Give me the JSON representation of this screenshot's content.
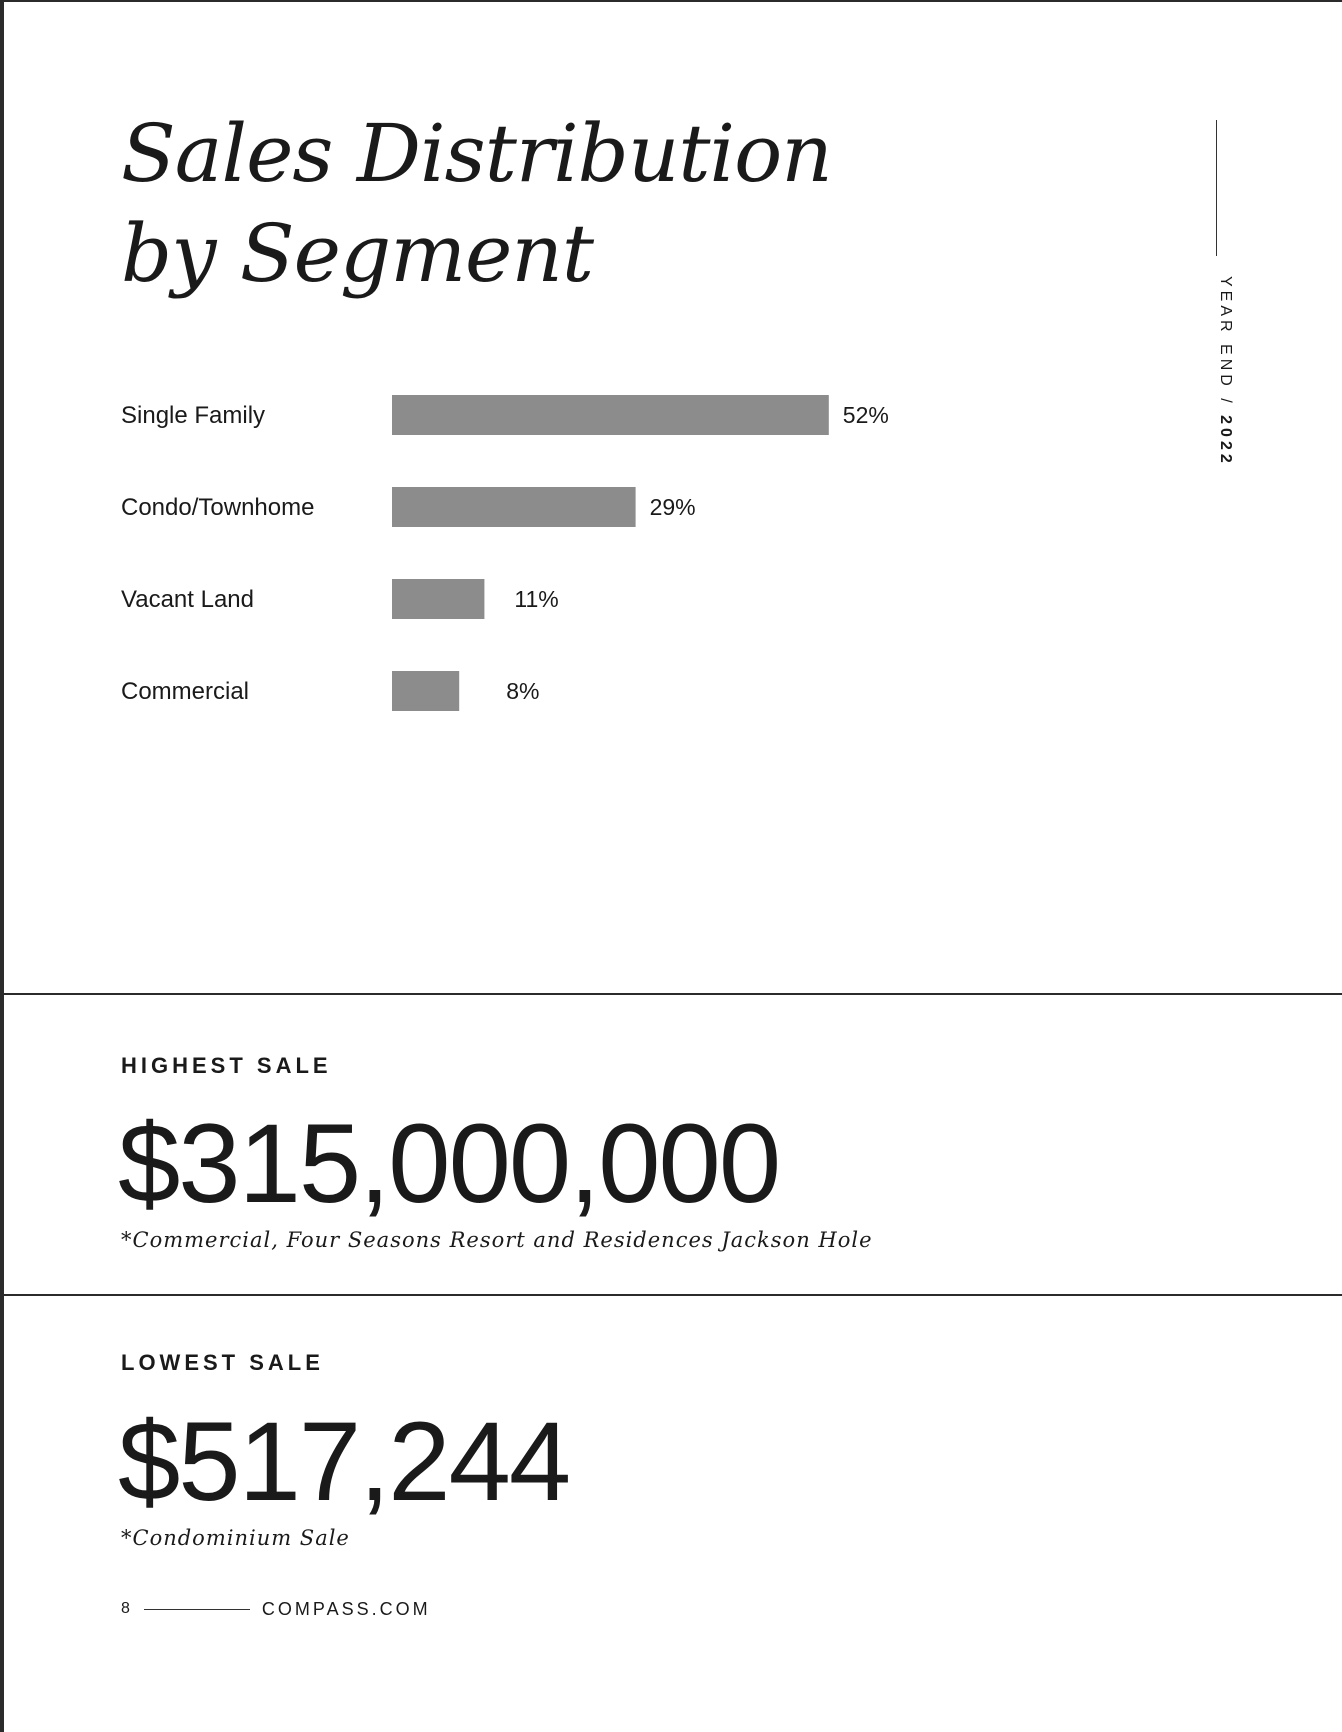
{
  "title": {
    "line1": "Sales Distribution",
    "line2": "by Segment"
  },
  "side_label": {
    "prefix": "YEAR END",
    "separator": " / ",
    "year": "2022"
  },
  "chart_data": {
    "type": "bar",
    "orientation": "horizontal",
    "categories": [
      "Single Family",
      "Condo/Townhome",
      "Vacant Land",
      "Commercial"
    ],
    "values": [
      52,
      29,
      11,
      8
    ],
    "labels": [
      "52%",
      "29%",
      "11%",
      "8%"
    ],
    "unit": "%",
    "bar_color": "#8c8c8c",
    "grid": false,
    "title": "",
    "xlabel": "",
    "ylabel": ""
  },
  "highest_sale": {
    "heading": "HIGHEST SALE",
    "value": "$315,000,000",
    "note": "*Commercial, Four Seasons Resort and Residences Jackson Hole"
  },
  "lowest_sale": {
    "heading": "LOWEST SALE",
    "value": "$517,244",
    "note": "*Condominium Sale"
  },
  "footer": {
    "page_number": "8",
    "site": "COMPASS.COM"
  }
}
